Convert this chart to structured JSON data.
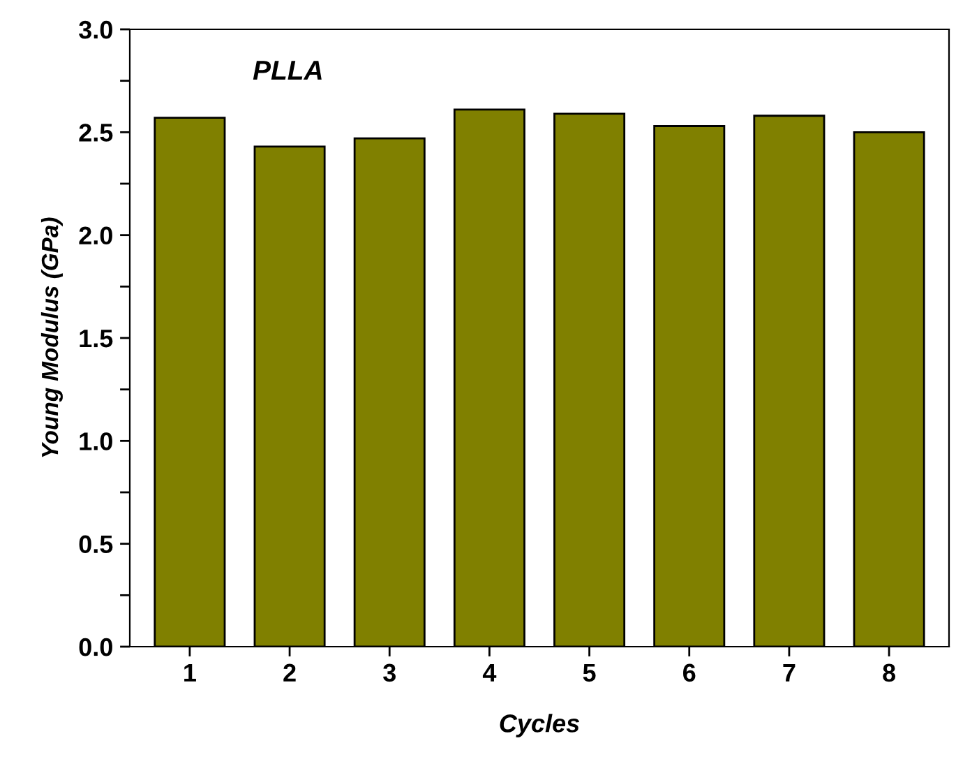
{
  "chart_data": {
    "type": "bar",
    "xlabel": "Cycles",
    "ylabel": "Young Modulus (GPa)",
    "annotations": [
      "PLLA"
    ],
    "categories": [
      "1",
      "2",
      "3",
      "4",
      "5",
      "6",
      "7",
      "8"
    ],
    "values": [
      2.57,
      2.43,
      2.47,
      2.61,
      2.59,
      2.53,
      2.58,
      2.5
    ],
    "color": "#808000",
    "ylim": [
      0,
      3.0
    ],
    "yticks": [
      {
        "value": 0,
        "label": "0.0"
      },
      {
        "value": 0.25,
        "label": null
      },
      {
        "value": 0.5,
        "label": "0.5"
      },
      {
        "value": 0.75,
        "label": null
      },
      {
        "value": 1.0,
        "label": "1.0"
      },
      {
        "value": 1.25,
        "label": null
      },
      {
        "value": 1.5,
        "label": "1.5"
      },
      {
        "value": 1.75,
        "label": null
      },
      {
        "value": 2.0,
        "label": "2.0"
      },
      {
        "value": 2.25,
        "label": null
      },
      {
        "value": 2.5,
        "label": "2.5"
      },
      {
        "value": 2.75,
        "label": null
      },
      {
        "value": 3.0,
        "label": "3.0"
      }
    ],
    "grid": false,
    "legend": false
  }
}
